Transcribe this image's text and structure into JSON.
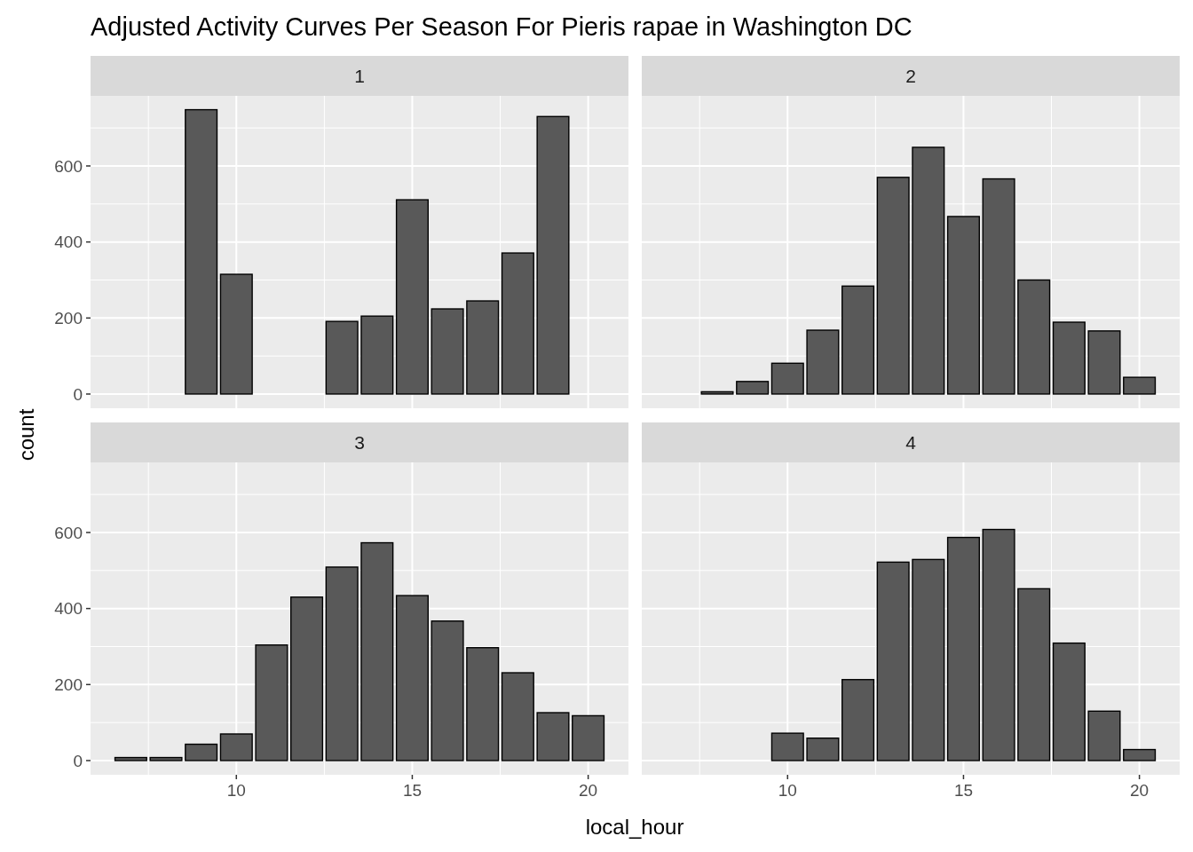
{
  "chart_data": [
    {
      "type": "bar",
      "title": "1",
      "annotations": [
        "Adjusted Activity Curves Per Season For Pieris rapae in Washington DC"
      ],
      "ylabel": "count",
      "color": "#595959",
      "grid": true,
      "tick_labels": "y",
      "x": [
        9,
        10,
        13,
        14,
        15,
        16,
        17,
        18,
        19
      ],
      "values": [
        748,
        315,
        191,
        205,
        511,
        224,
        245,
        371,
        730
      ],
      "xlim": [
        5.855,
        21.145
      ],
      "xticks": [
        10,
        15,
        20
      ],
      "ylim": [
        -37.4,
        784.4
      ],
      "yticks": [
        0,
        200,
        400,
        600
      ]
    },
    {
      "type": "bar",
      "title": "2",
      "color": "#595959",
      "grid": true,
      "tick_labels": false,
      "x": [
        8,
        9,
        10,
        11,
        12,
        13,
        14,
        15,
        16,
        17,
        18,
        19,
        20
      ],
      "values": [
        6,
        33,
        81,
        168,
        284,
        570,
        649,
        467,
        566,
        300,
        189,
        166,
        44
      ],
      "xlim": [
        5.855,
        21.145
      ],
      "xticks": [
        10,
        15,
        20
      ],
      "ylim": [
        -37.4,
        784.4
      ],
      "yticks": [
        0,
        200,
        400,
        600
      ]
    },
    {
      "type": "bar",
      "title": "3",
      "xlabel": "local_hour",
      "color": "#595959",
      "grid": true,
      "x": [
        7,
        8,
        9,
        10,
        11,
        12,
        13,
        14,
        15,
        16,
        17,
        18,
        19,
        20
      ],
      "values": [
        8,
        8,
        43,
        70,
        304,
        430,
        509,
        573,
        434,
        367,
        297,
        231,
        126,
        118
      ],
      "xlim": [
        5.855,
        21.145
      ],
      "xticks": [
        10,
        15,
        20
      ],
      "ylim": [
        -37.4,
        784.4
      ],
      "yticks": [
        0,
        200,
        400,
        600
      ]
    },
    {
      "type": "bar",
      "title": "4",
      "color": "#595959",
      "grid": true,
      "tick_labels": "x",
      "x": [
        10,
        11,
        12,
        13,
        14,
        15,
        16,
        17,
        18,
        19,
        20
      ],
      "values": [
        72,
        59,
        213,
        522,
        529,
        587,
        608,
        452,
        309,
        130,
        29
      ],
      "xlim": [
        5.855,
        21.145
      ],
      "xticks": [
        10,
        15,
        20
      ],
      "ylim": [
        -37.4,
        784.4
      ],
      "yticks": [
        0,
        200,
        400,
        600
      ]
    }
  ]
}
